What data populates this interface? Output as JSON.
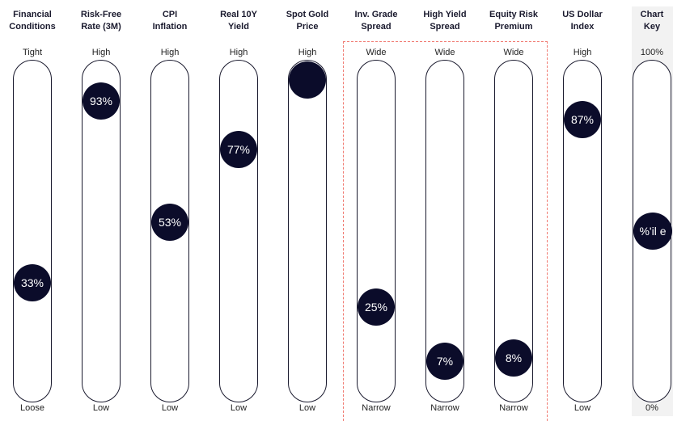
{
  "chart_data": {
    "type": "percentile-gauges",
    "colors": {
      "marker": "#0b0c2a",
      "track_border": "#1a1a2e",
      "highlight_border": "#f07b72",
      "key_background": "#f2f2f2"
    },
    "columns": [
      {
        "title": [
          "Financial",
          "Conditions"
        ],
        "top_label": "Tight",
        "bottom_label": "Loose",
        "value": 33,
        "value_label": "33%"
      },
      {
        "title": [
          "Risk-Free",
          "Rate (3M)"
        ],
        "top_label": "High",
        "bottom_label": "Low",
        "value": 93,
        "value_label": "93%"
      },
      {
        "title": [
          "CPI",
          "Inflation"
        ],
        "top_label": "High",
        "bottom_label": "Low",
        "value": 53,
        "value_label": "53%"
      },
      {
        "title": [
          "Real 10Y",
          "Yield"
        ],
        "top_label": "High",
        "bottom_label": "Low",
        "value": 77,
        "value_label": "77%"
      },
      {
        "title": [
          "Spot Gold",
          "Price"
        ],
        "top_label": "High",
        "bottom_label": "Low",
        "value": 100,
        "value_label": ""
      },
      {
        "title": [
          "Inv. Grade",
          "Spread"
        ],
        "top_label": "Wide",
        "bottom_label": "Narrow",
        "value": 25,
        "value_label": "25%"
      },
      {
        "title": [
          "High Yield",
          "Spread"
        ],
        "top_label": "Wide",
        "bottom_label": "Narrow",
        "value": 7,
        "value_label": "7%"
      },
      {
        "title": [
          "Equity Risk",
          "Premium"
        ],
        "top_label": "Wide",
        "bottom_label": "Narrow",
        "value": 8,
        "value_label": "8%"
      },
      {
        "title": [
          "US Dollar",
          "Index"
        ],
        "top_label": "High",
        "bottom_label": "Low",
        "value": 87,
        "value_label": "87%"
      },
      {
        "title": [
          "Chart",
          "Key"
        ],
        "top_label": "100%",
        "bottom_label": "0%",
        "value": 50,
        "value_label": "%'il e"
      }
    ]
  }
}
